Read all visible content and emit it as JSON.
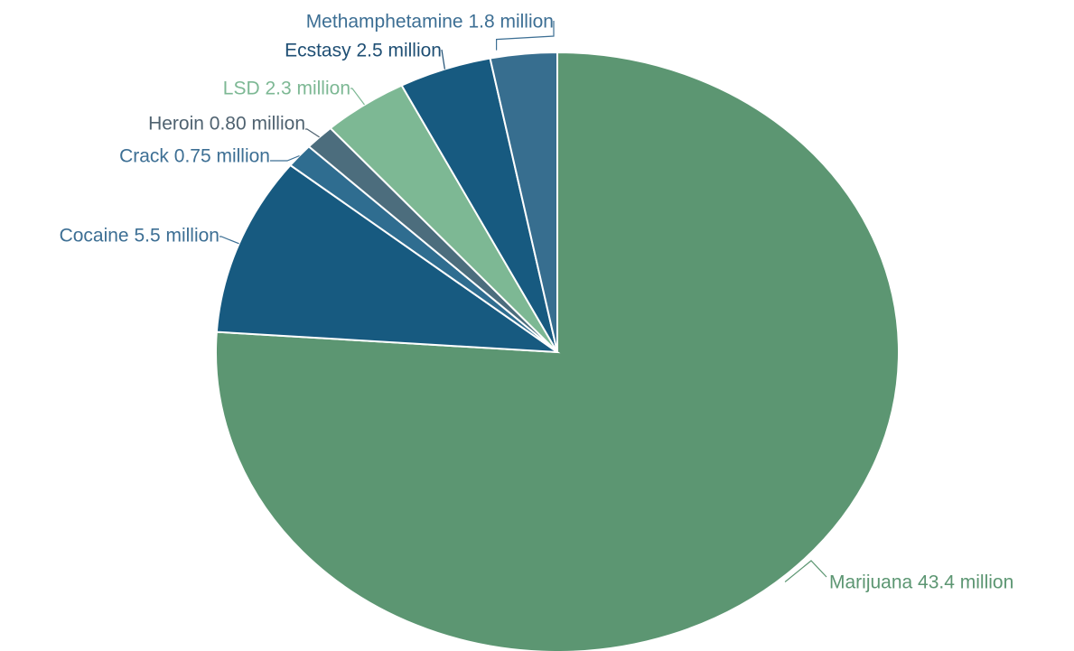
{
  "chart_data": {
    "type": "pie",
    "title": "",
    "start_angle_deg": 0,
    "direction": "clockwise",
    "unit_suffix": " million",
    "slices": [
      {
        "name": "Marijuana",
        "value": 43.4,
        "value_label": "43.4",
        "color": "#5c9672",
        "label_color": "#5c9672"
      },
      {
        "name": "Cocaine",
        "value": 5.5,
        "value_label": "5.5",
        "color": "#175a80",
        "label_color": "#3d6f94"
      },
      {
        "name": "Crack",
        "value": 0.75,
        "value_label": "0.75",
        "color": "#2f6d90",
        "label_color": "#3d6f94"
      },
      {
        "name": "Heroin",
        "value": 0.8,
        "value_label": "0.80",
        "color": "#4c6d7d",
        "label_color": "#4f6270"
      },
      {
        "name": "LSD",
        "value": 2.3,
        "value_label": "2.3",
        "color": "#7db894",
        "label_color": "#7db894"
      },
      {
        "name": "Ecstasy",
        "value": 2.5,
        "value_label": "2.5",
        "color": "#175a80",
        "label_color": "#1f4f74"
      },
      {
        "name": "Methamphetamine",
        "value": 1.8,
        "value_label": "1.8",
        "color": "#376e8f",
        "label_color": "#3d6f94"
      }
    ]
  }
}
